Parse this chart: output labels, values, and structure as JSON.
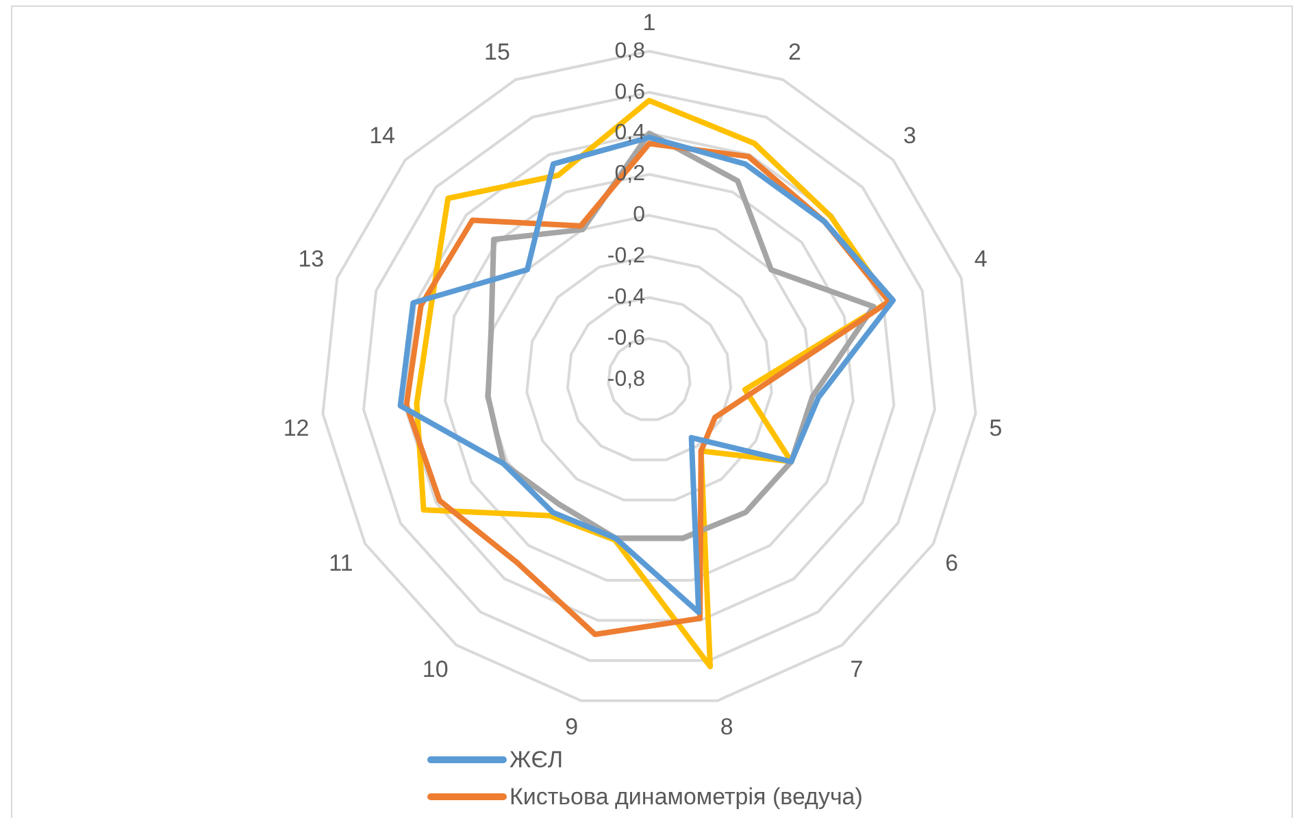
{
  "chart_data": {
    "type": "radar",
    "categories": [
      "1",
      "2",
      "3",
      "4",
      "5",
      "6",
      "7",
      "8",
      "9",
      "10",
      "11",
      "12",
      "13",
      "14",
      "15"
    ],
    "ylim": [
      -0.8,
      0.8
    ],
    "yticks": [
      {
        "value": -0.8,
        "label": "-0,8"
      },
      {
        "value": -0.6,
        "label": "-0,6"
      },
      {
        "value": -0.4,
        "label": "-0,4"
      },
      {
        "value": -0.2,
        "label": "-0,2"
      },
      {
        "value": 0,
        "label": "0"
      },
      {
        "value": 0.2,
        "label": "0,2"
      },
      {
        "value": 0.4,
        "label": "0,4"
      },
      {
        "value": 0.6,
        "label": "0,6"
      },
      {
        "value": 0.8,
        "label": "0,8"
      }
    ],
    "grid": true,
    "legend": "bottom",
    "marker": "none",
    "line_style": "solid",
    "series": [
      {
        "name": "ЖЄЛ",
        "color": "#5b9bd5",
        "values": [
          0.38,
          0.35,
          0.35,
          0.45,
          0.03,
          0.0,
          -0.45,
          0.36,
          -0.01,
          0.0,
          0.02,
          0.42,
          0.41,
          0.0,
          0.35
        ]
      },
      {
        "name": "Кистьова динамометрія (ведуча)",
        "color": "#ed7d31",
        "values": [
          0.35,
          0.39,
          0.35,
          0.43,
          -0.28,
          -0.43,
          -0.37,
          0.39,
          0.47,
          0.3,
          0.38,
          0.39,
          0.37,
          0.36,
          0.02
        ]
      },
      {
        "color": "#a5a5a5",
        "values": [
          0.4,
          0.26,
          0.0,
          0.35,
          0.0,
          0.0,
          0.0,
          -0.01,
          -0.01,
          -0.05,
          0.02,
          -0.01,
          0.01,
          0.22,
          0.0
        ]
      },
      {
        "color": "#ffc000",
        "values": [
          0.56,
          0.46,
          0.39,
          0.43,
          -0.33,
          0.0,
          -0.37,
          0.63,
          0.0,
          0.02,
          0.47,
          0.34,
          0.32,
          0.52,
          0.29
        ]
      }
    ]
  }
}
